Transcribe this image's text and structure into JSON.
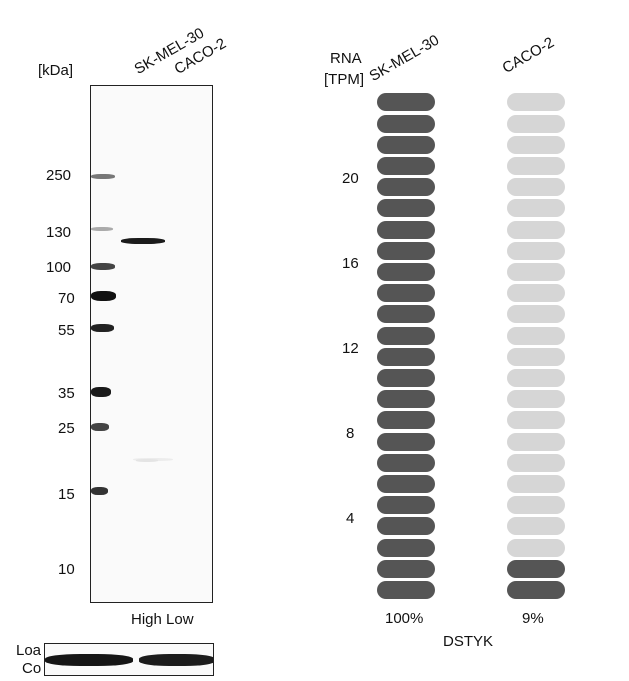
{
  "western_blot": {
    "unit_label": "[kDa]",
    "lanes": [
      "SK-MEL-30",
      "CACO-2"
    ],
    "markers": [
      "250",
      "130",
      "100",
      "70",
      "55",
      "35",
      "25",
      "15",
      "10"
    ],
    "range_label": "High Low",
    "loading_label_line1": "Loa",
    "loading_label_line2": "Co"
  },
  "rna": {
    "header_line1": "RNA",
    "header_line2": "[TPM]",
    "samples": [
      "SK-MEL-30",
      "CACO-2"
    ],
    "ticks": [
      "20",
      "16",
      "12",
      "8",
      "4"
    ],
    "percentages": [
      "100%",
      "9%"
    ],
    "gene": "DSTYK",
    "total_segments": 24,
    "filled_segments": [
      24,
      2
    ],
    "colors": {
      "filled": "#555555",
      "empty": "#d6d6d6"
    }
  }
}
